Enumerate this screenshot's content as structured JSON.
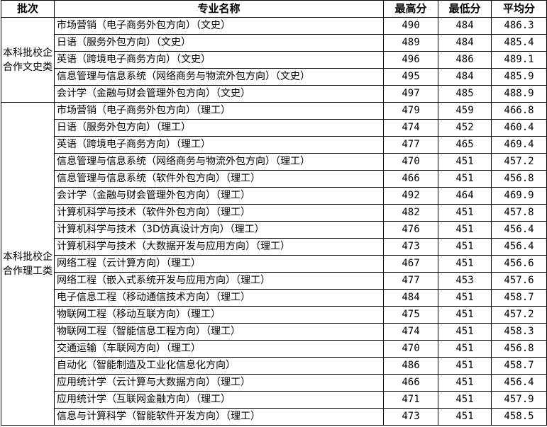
{
  "headers": [
    "批次",
    "专业名称",
    "最高分",
    "最低分",
    "平均分"
  ],
  "groups": [
    {
      "batch": "本科批校企合作文史类",
      "rows": [
        [
          "市场营销（电子商务外包方向）（文史）",
          "490",
          "484",
          "486.3"
        ],
        [
          "日语（服务外包方向）（文史）",
          "489",
          "484",
          "485.4"
        ],
        [
          "英语（跨境电子商务方向）（文史）",
          "496",
          "486",
          "489.1"
        ],
        [
          "信息管理与信息系统（网络商务与物流外包方向）（文史）",
          "495",
          "484",
          "485.9"
        ],
        [
          "会计学（金融与财会管理外包方向）（文史）",
          "497",
          "485",
          "488.9"
        ]
      ]
    },
    {
      "batch": "本科批校企合作理工类",
      "rows": [
        [
          "市场营销（电子商务外包方向）（理工）",
          "479",
          "459",
          "466.8"
        ],
        [
          "日语（服务外包方向）（理工）",
          "474",
          "452",
          "460.4"
        ],
        [
          "英语（跨境电子商务方向）（理工）",
          "477",
          "465",
          "469.4"
        ],
        [
          "信息管理与信息系统（网络商务与物流外包方向）（理工）",
          "470",
          "451",
          "457.2"
        ],
        [
          "信息管理与信息系统（软件外包方向）（理工）",
          "466",
          "451",
          "456.8"
        ],
        [
          "会计学（金融与财会管理外包方向）（理工）",
          "492",
          "464",
          "469.9"
        ],
        [
          "计算机科学与技术（软件外包方向）（理工）",
          "482",
          "451",
          "457.8"
        ],
        [
          "计算机科学与技术（3D仿真设计方向）（理工）",
          "476",
          "451",
          "456.4"
        ],
        [
          "计算机科学与技术（大数据开发与应用方向）（理工）",
          "473",
          "451",
          "456.4"
        ],
        [
          "网络工程（云计算方向）（理工）",
          "467",
          "451",
          "456.6"
        ],
        [
          "网络工程（嵌入式系统开发与应用方向）（理工）",
          "477",
          "453",
          "457.6"
        ],
        [
          "电子信息工程（移动通信技术方向）（理工）",
          "484",
          "451",
          "458.7"
        ],
        [
          "物联网工程（移动互联方向）（理工）",
          "475",
          "451",
          "457.2"
        ],
        [
          "物联网工程（智能信息工程方向）（理工）",
          "474",
          "451",
          "458.3"
        ],
        [
          "交通运输（车联网方向）（理工）",
          "470",
          "451",
          "456.8"
        ],
        [
          "自动化（智能制造及工业化信息化方向）",
          "486",
          "451",
          "458.7"
        ],
        [
          "应用统计学（云计算与大数据方向）（理工）",
          "466",
          "451",
          "456.4"
        ],
        [
          "应用统计学（互联网金融方向）（理工）",
          "471",
          "451",
          "457.9"
        ],
        [
          "信息与计算科学（智能软件开发方向）（理工）",
          "473",
          "451",
          "458.5"
        ]
      ]
    }
  ]
}
